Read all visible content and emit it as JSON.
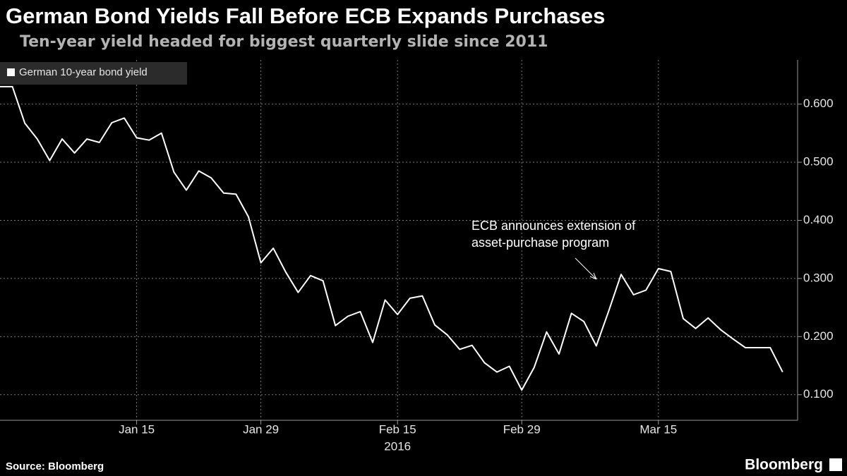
{
  "chart_data": {
    "type": "line",
    "title": "German Bond Yields Fall Before ECB Expands Purchases",
    "subtitle": "Ten-year yield headed for biggest quarterly slide since 2011",
    "source": "Source: Bloomberg",
    "brand": "Bloomberg",
    "year_label": "2016",
    "annotation": [
      "ECB announces extension of",
      "asset-purchase program"
    ],
    "categories": [
      null,
      null,
      null,
      null,
      null,
      null,
      null,
      null,
      null,
      null,
      null,
      "Jan 15",
      null,
      null,
      null,
      null,
      null,
      null,
      null,
      null,
      null,
      "Jan 29",
      null,
      null,
      null,
      null,
      null,
      null,
      null,
      null,
      null,
      null,
      "Feb 15",
      null,
      null,
      null,
      null,
      null,
      null,
      null,
      null,
      null,
      "Feb 29",
      null,
      null,
      null,
      null,
      null,
      null,
      null,
      null,
      null,
      null,
      "Mar 15",
      null,
      null,
      null,
      null,
      null,
      null,
      null,
      null,
      null,
      null
    ],
    "series": [
      {
        "name": "German 10-year bond yield",
        "color": "#ffffff",
        "values": [
          0.63,
          0.63,
          0.567,
          0.54,
          0.503,
          0.54,
          0.516,
          0.54,
          0.534,
          0.568,
          0.576,
          0.542,
          0.538,
          0.55,
          0.483,
          0.452,
          0.485,
          0.473,
          0.447,
          0.445,
          0.406,
          0.327,
          0.352,
          0.311,
          0.276,
          0.305,
          0.296,
          0.219,
          0.235,
          0.243,
          0.19,
          0.263,
          0.238,
          0.266,
          0.27,
          0.22,
          0.203,
          0.178,
          0.185,
          0.155,
          0.139,
          0.149,
          0.108,
          0.147,
          0.208,
          0.17,
          0.24,
          0.226,
          0.184,
          0.244,
          0.307,
          0.272,
          0.28,
          0.317,
          0.312,
          0.231,
          0.214,
          0.232,
          0.212,
          0.196,
          0.181,
          0.181,
          0.181,
          0.139
        ]
      }
    ],
    "ylim": [
      0.056,
      0.676
    ],
    "yticks": [
      {
        "value": 0.1,
        "label": "0.100"
      },
      {
        "value": 0.2,
        "label": "0.200"
      },
      {
        "value": 0.3,
        "label": "0.300"
      },
      {
        "value": 0.4,
        "label": "0.400"
      },
      {
        "value": 0.5,
        "label": "0.500"
      },
      {
        "value": 0.6,
        "label": "0.600"
      }
    ],
    "grid": true,
    "legend": "top-left"
  }
}
